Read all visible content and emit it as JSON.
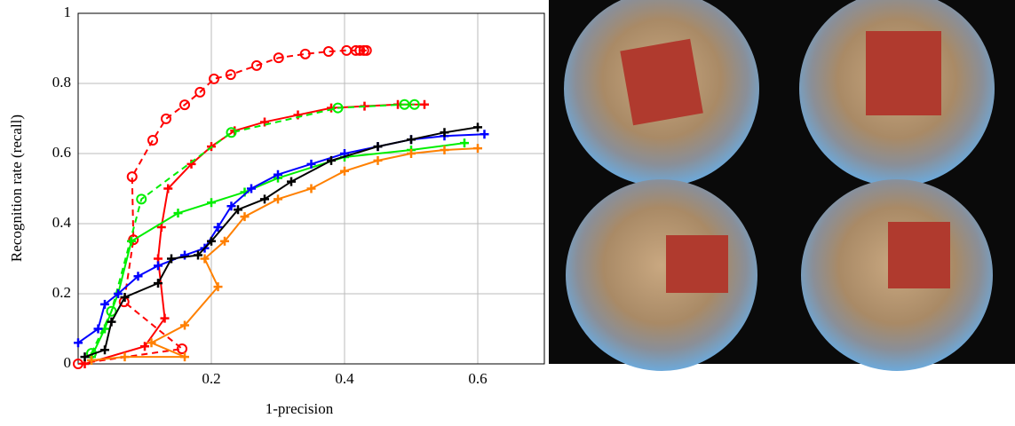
{
  "chart_data": {
    "type": "line",
    "xlabel": "1-precision",
    "ylabel": "Recognition rate (recall)",
    "xlim": [
      0,
      0.7
    ],
    "ylim": [
      0,
      1
    ],
    "xticks": [
      0.2,
      0.4,
      0.6
    ],
    "yticks": [
      0,
      0.2,
      0.4,
      0.6,
      0.8,
      1
    ],
    "grid": true,
    "series": [
      {
        "color": "#ff0000",
        "dash": true,
        "marker": "circle",
        "x": [
          0,
          0.156,
          0.069,
          0.083,
          0.081,
          0.112,
          0.132,
          0.16,
          0.183,
          0.204,
          0.229,
          0.268,
          0.301,
          0.341,
          0.376,
          0.403,
          0.417,
          0.423,
          0.429,
          0.433
        ],
        "values": [
          0,
          0.043,
          0.177,
          0.354,
          0.534,
          0.638,
          0.699,
          0.739,
          0.775,
          0.813,
          0.825,
          0.851,
          0.873,
          0.884,
          0.891,
          0.894,
          0.894,
          0.894,
          0.894,
          0.894
        ]
      },
      {
        "color": "#ff0000",
        "dash": false,
        "marker": "plus",
        "x": [
          0.01,
          0.1,
          0.13,
          0.12,
          0.125,
          0.135,
          0.17,
          0.2,
          0.235,
          0.28,
          0.33,
          0.38,
          0.43,
          0.48,
          0.52
        ],
        "values": [
          0,
          0.05,
          0.13,
          0.3,
          0.39,
          0.5,
          0.57,
          0.62,
          0.665,
          0.69,
          0.71,
          0.73,
          0.735,
          0.74,
          0.74
        ]
      },
      {
        "color": "#00ee00",
        "dash": true,
        "marker": "circle",
        "x": [
          0.02,
          0.05,
          0.095,
          0.23,
          0.39,
          0.49,
          0.505
        ],
        "values": [
          0.03,
          0.15,
          0.47,
          0.66,
          0.73,
          0.74,
          0.74
        ]
      },
      {
        "color": "#00ee00",
        "dash": false,
        "marker": "plus",
        "x": [
          0.02,
          0.04,
          0.06,
          0.08,
          0.15,
          0.2,
          0.25,
          0.3,
          0.4,
          0.5,
          0.58
        ],
        "values": [
          0.02,
          0.1,
          0.2,
          0.35,
          0.43,
          0.46,
          0.49,
          0.53,
          0.59,
          0.61,
          0.63
        ]
      },
      {
        "color": "#0000ff",
        "dash": false,
        "marker": "plus",
        "x": [
          0,
          0.03,
          0.04,
          0.06,
          0.09,
          0.12,
          0.16,
          0.19,
          0.21,
          0.23,
          0.26,
          0.3,
          0.35,
          0.4,
          0.45,
          0.5,
          0.55,
          0.61
        ],
        "values": [
          0.06,
          0.1,
          0.17,
          0.2,
          0.25,
          0.28,
          0.31,
          0.33,
          0.39,
          0.45,
          0.5,
          0.54,
          0.57,
          0.6,
          0.62,
          0.64,
          0.65,
          0.655
        ]
      },
      {
        "color": "#000000",
        "dash": false,
        "marker": "plus",
        "x": [
          0.01,
          0.04,
          0.05,
          0.07,
          0.12,
          0.14,
          0.18,
          0.2,
          0.24,
          0.28,
          0.32,
          0.38,
          0.45,
          0.5,
          0.55,
          0.6
        ],
        "values": [
          0.02,
          0.04,
          0.12,
          0.19,
          0.23,
          0.3,
          0.31,
          0.35,
          0.44,
          0.47,
          0.52,
          0.58,
          0.62,
          0.64,
          0.66,
          0.675
        ]
      },
      {
        "color": "#ff8000",
        "dash": false,
        "marker": "plus",
        "x": [
          0.02,
          0.07,
          0.16,
          0.11,
          0.16,
          0.21,
          0.19,
          0.22,
          0.25,
          0.3,
          0.35,
          0.4,
          0.45,
          0.5,
          0.55,
          0.6
        ],
        "values": [
          0.01,
          0.02,
          0.02,
          0.06,
          0.11,
          0.22,
          0.3,
          0.35,
          0.42,
          0.47,
          0.5,
          0.55,
          0.58,
          0.6,
          0.61,
          0.615
        ]
      }
    ]
  }
}
